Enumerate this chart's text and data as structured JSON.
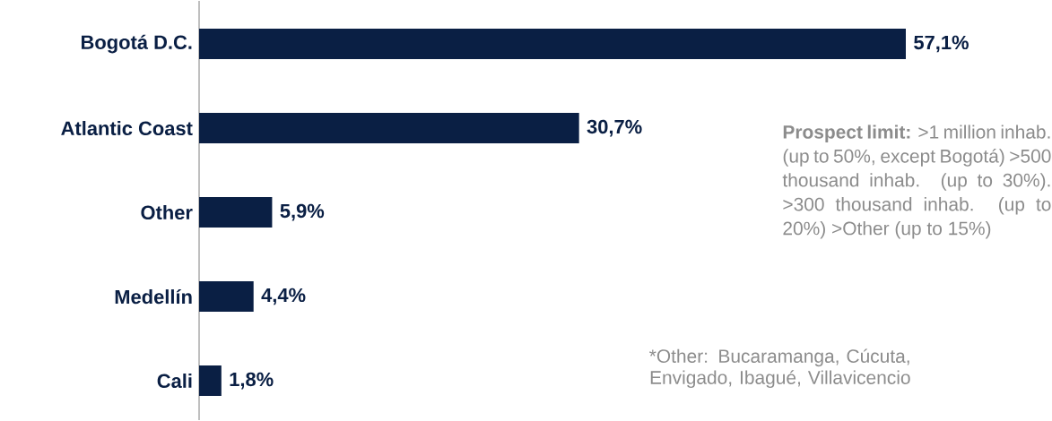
{
  "chart_data": {
    "type": "bar",
    "orientation": "horizontal",
    "categories": [
      "Bogotá D.C.",
      "Atlantic Coast",
      "Other",
      "Medellín",
      "Cali"
    ],
    "values": [
      57.1,
      30.7,
      5.9,
      4.4,
      1.8
    ],
    "value_labels": [
      "57,1%",
      "30,7%",
      "5,9%",
      "4,4%",
      "1,8%"
    ],
    "color": "#0a1f44",
    "annotations": [
      "**Prospect limit:** >1 million inhab. (up to 50%, except Bogotá) >500 thousand inhab. (up to 30%). >300 thousand inhab. (up to 20%) >Other (up to 15%)",
      "*Other: Bucaramanga, Cúcuta, Envigado, Ibagué, Villavicencio"
    ]
  }
}
